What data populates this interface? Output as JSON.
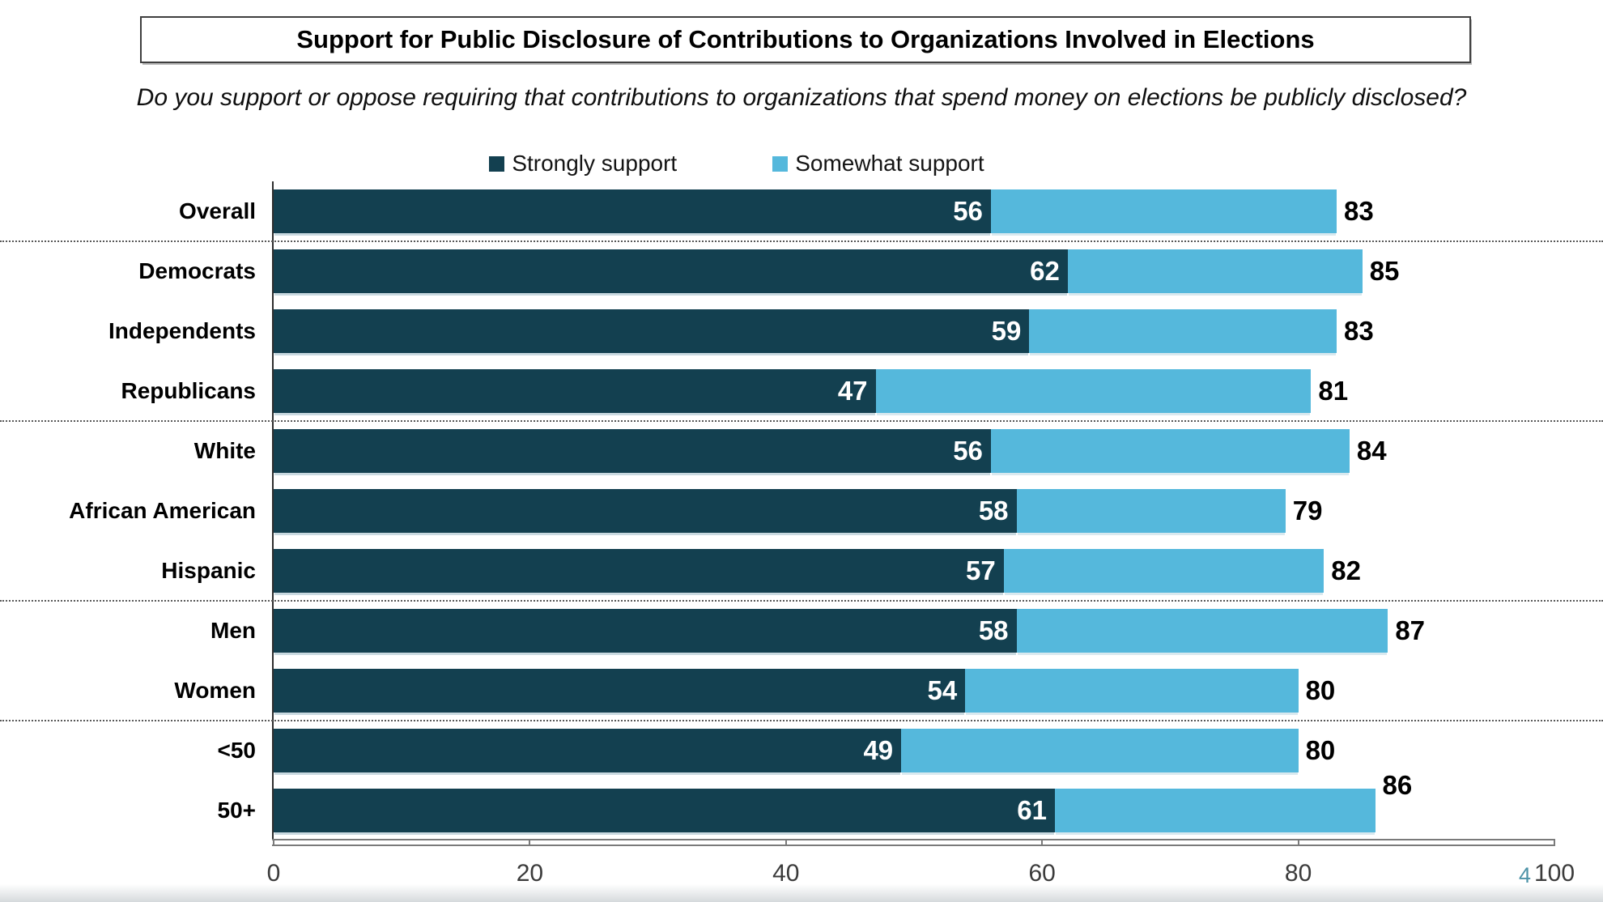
{
  "title": "Support for Public Disclosure of Contributions to Organizations Involved in Elections",
  "subtitle": "Do you support or oppose requiring that contributions to organizations that spend money on elections be publicly disclosed?",
  "legend": {
    "items": [
      {
        "label": "Strongly support",
        "color": "#134050"
      },
      {
        "label": "Somewhat support",
        "color": "#55b8dc"
      }
    ]
  },
  "page_number": "4",
  "chart_data": {
    "type": "bar",
    "orientation": "horizontal",
    "stacked": true,
    "title": "Support for Public Disclosure of Contributions to Organizations Involved in Elections",
    "question": "Do you support or oppose requiring that contributions to organizations that spend money on elections be publicly disclosed?",
    "xlabel": "",
    "ylabel": "",
    "xlim": [
      0,
      100
    ],
    "xticks": [
      0,
      20,
      40,
      60,
      80,
      100
    ],
    "grid": false,
    "legend_position": "top-center",
    "categories": [
      "Overall",
      "Democrats",
      "Independents",
      "Republicans",
      "White",
      "African American",
      "Hispanic",
      "Men",
      "Women",
      "<50",
      "50+"
    ],
    "series": [
      {
        "name": "Strongly support",
        "color": "#134050",
        "label_color": "#ffffff",
        "values": [
          56,
          62,
          59,
          47,
          56,
          58,
          57,
          58,
          54,
          49,
          61
        ]
      },
      {
        "name": "Somewhat support",
        "color": "#55b8dc",
        "note": "Bar-end labels show total support (strongly + somewhat); light segment width = total minus strongly",
        "values": [
          83,
          85,
          83,
          81,
          84,
          79,
          82,
          87,
          80,
          80,
          86
        ]
      }
    ],
    "separators_after_category_index": [
      0,
      3,
      6,
      8
    ],
    "raised_total_labels": [
      "50+"
    ]
  }
}
